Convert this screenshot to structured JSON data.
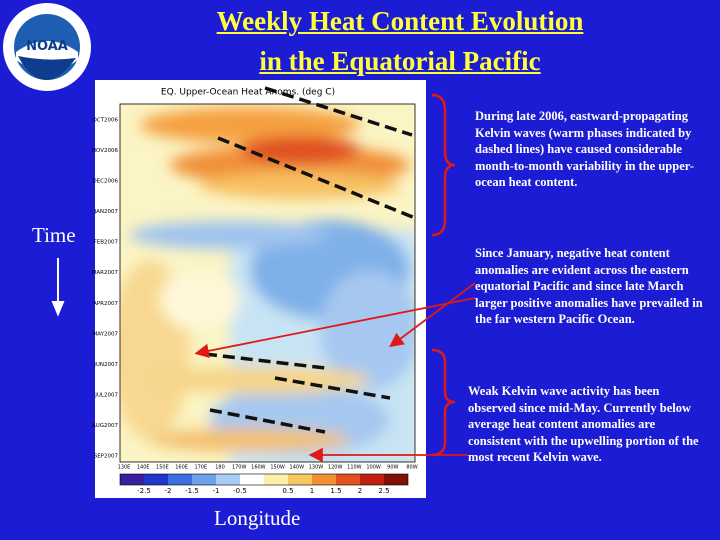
{
  "title_lines": [
    "Weekly Heat Content Evolution",
    "in the Equatorial Pacific"
  ],
  "logo_text": "NOAA",
  "panel_title": "EQ. Upper-Ocean Heat Anoms. (deg C)",
  "time_label": "Time",
  "longitude_label": "Longitude",
  "y_labels": [
    "OCT2006",
    "NOV2006",
    "DEC2006",
    "JAN2007",
    "FEB2007",
    "MAR2007",
    "APR2007",
    "MAY2007",
    "JUN2007",
    "JUL2007",
    "AUG2007",
    "SEP2007"
  ],
  "x_labels": [
    "130E",
    "140E",
    "150E",
    "160E",
    "170E",
    "180",
    "170W",
    "160W",
    "150W",
    "140W",
    "130W",
    "120W",
    "110W",
    "100W",
    "90W",
    "80W"
  ],
  "colorbar_labels": [
    "-2.5",
    "-2",
    "-1.5",
    "-1",
    "-0.5",
    "0.5",
    "1",
    "1.5",
    "2",
    "2.5"
  ],
  "notes": [
    "During late 2006, eastward-propagating Kelvin waves (warm phases indicated by dashed lines) have caused considerable month-to-month variability in the upper-ocean heat content.",
    "Since January, negative heat content anomalies are evident across the eastern equatorial Pacific and since late March larger positive anomalies have prevailed in the far western Pacific Ocean.",
    "Weak Kelvin wave activity has been observed since mid-May.  Currently below average heat content anomalies are consistent with the upwelling portion of the most recent  Kelvin wave."
  ]
}
